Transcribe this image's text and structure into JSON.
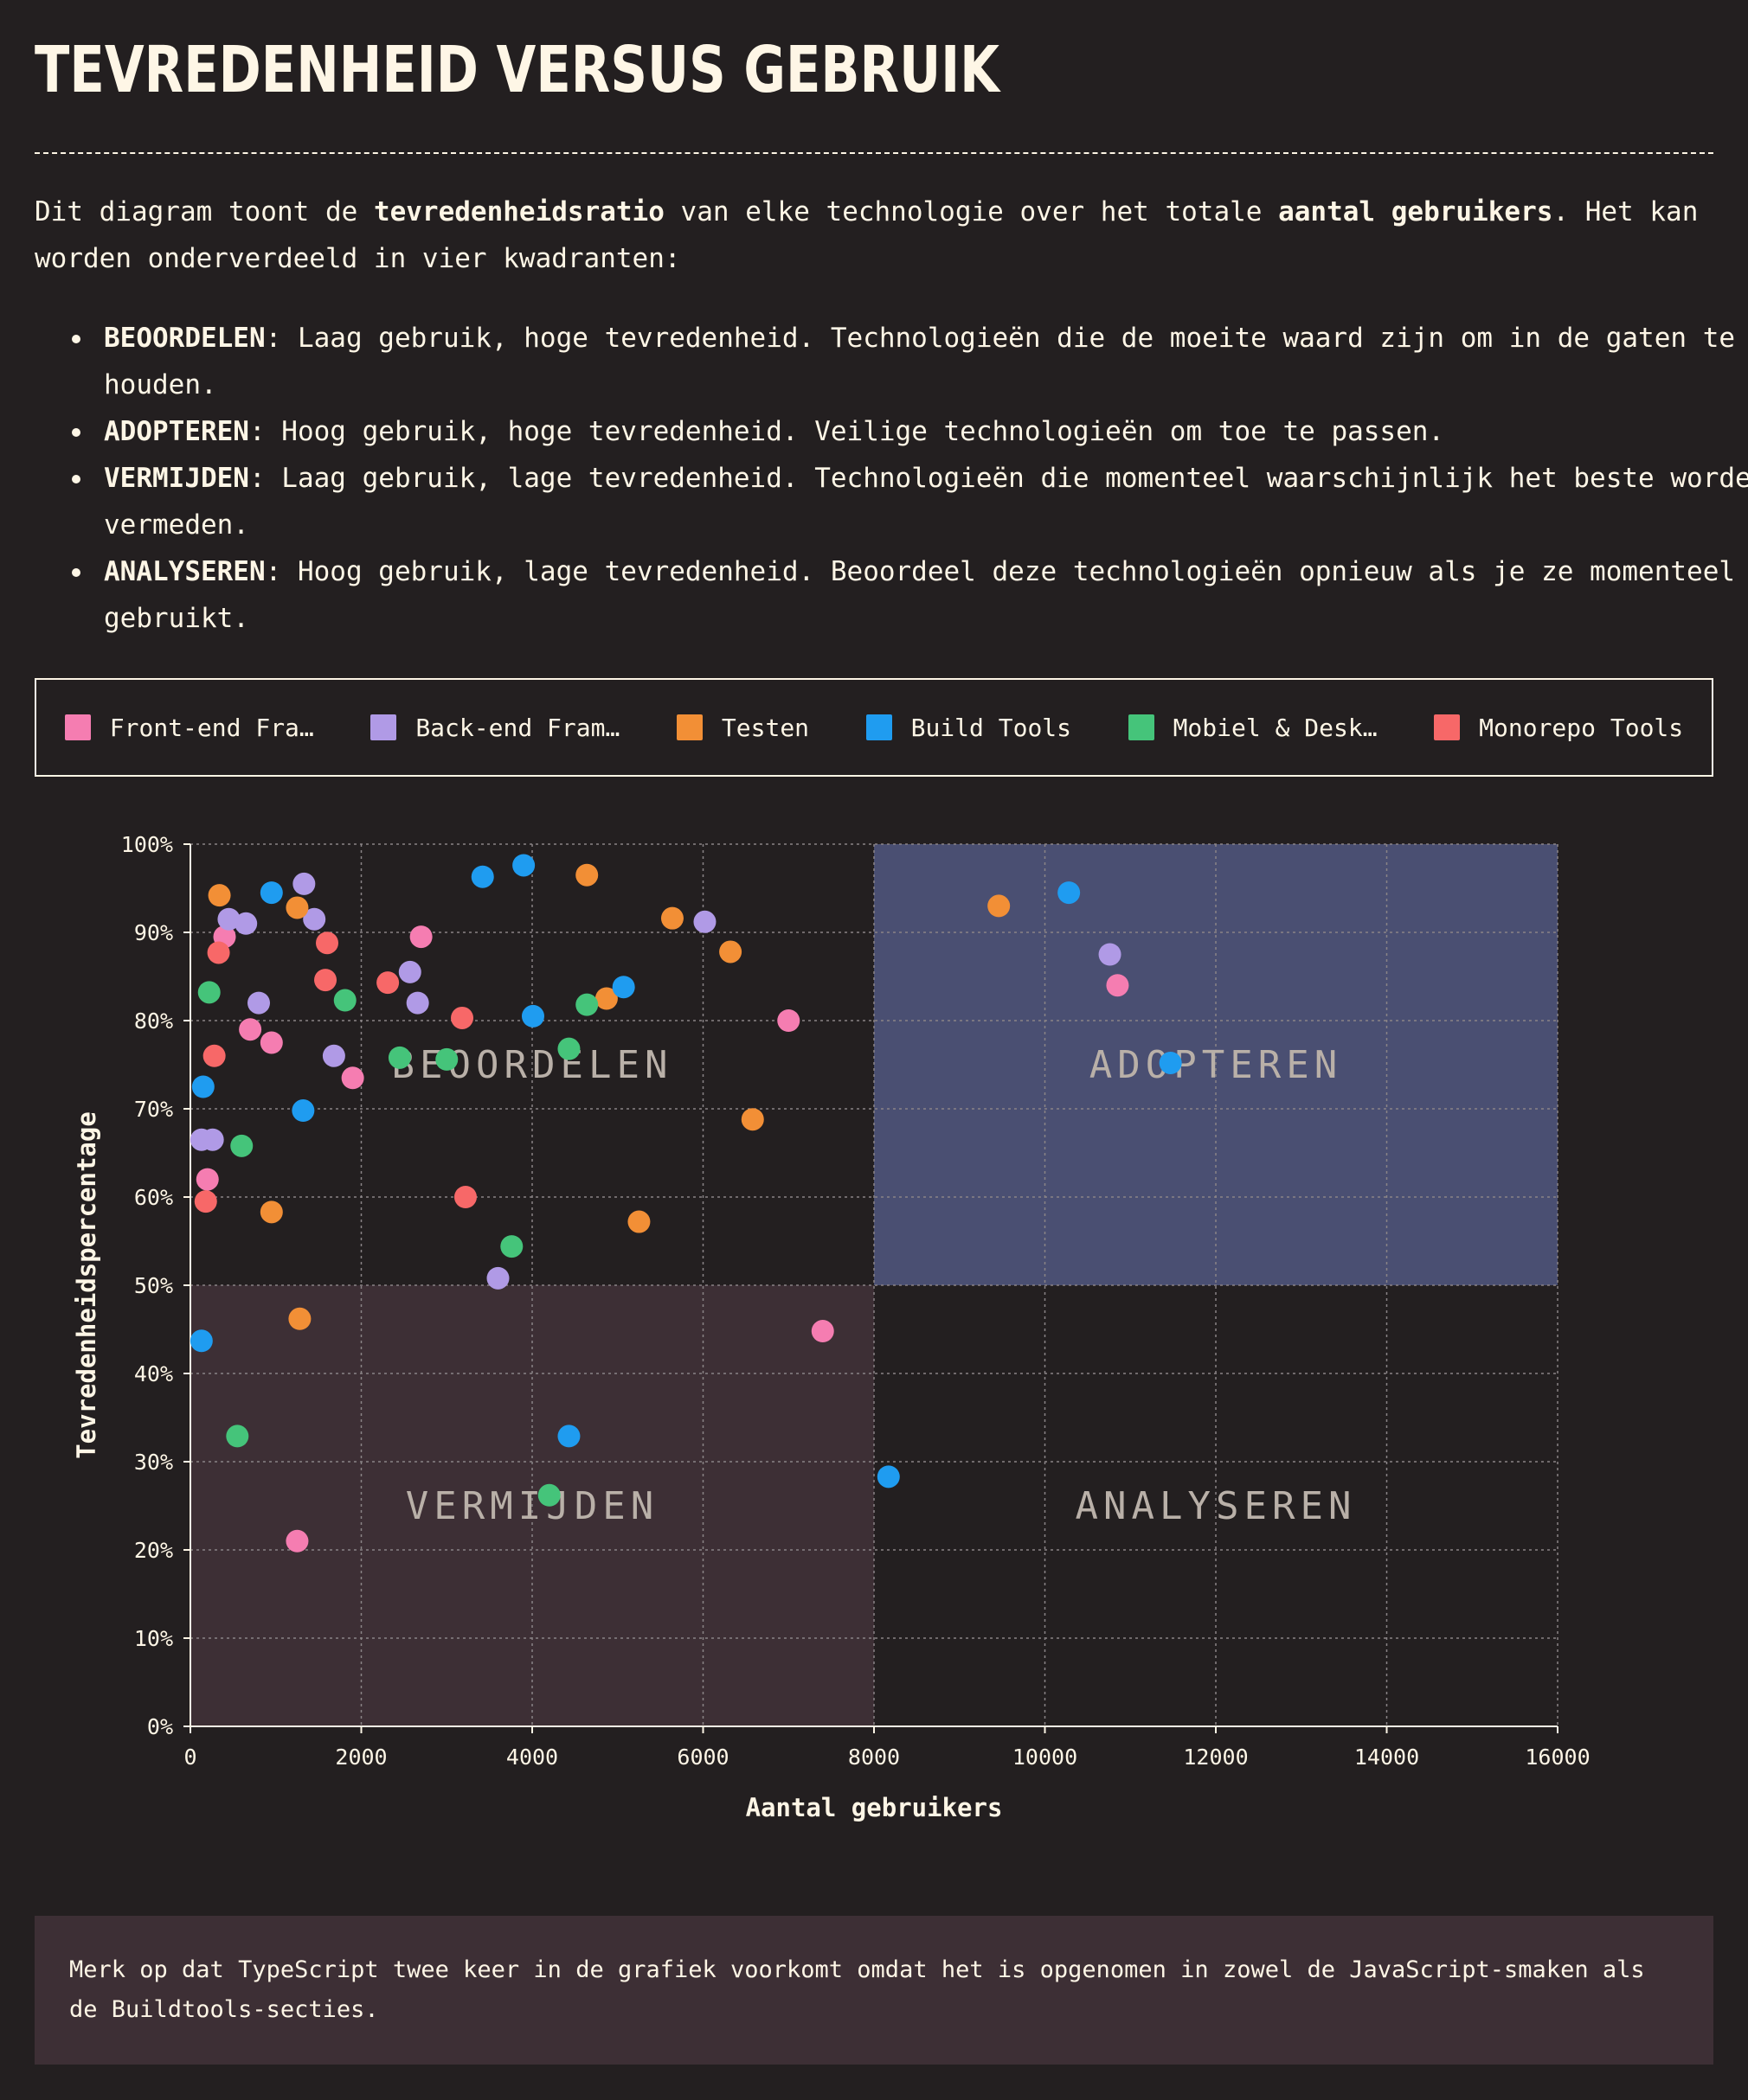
{
  "page": {
    "title": "Tevredenheid versus gebruik",
    "intro": {
      "part1": "Dit diagram toont de ",
      "bold1": "tevredenheidsratio",
      "part2": " van elke technologie over het totale ",
      "bold2": "aantal gebruikers",
      "part3": ". Het kan worden onderverdeeld in vier kwadranten:"
    },
    "quadrants": [
      {
        "name": "BEOORDELEN",
        "text": ": Laag gebruik, hoge tevredenheid. Technologieën die de moeite waard zijn om in de gaten te houden."
      },
      {
        "name": "ADOPTEREN",
        "text": ": Hoog gebruik, hoge tevredenheid. Veilige technologieën om toe te passen."
      },
      {
        "name": "VERMIJDEN",
        "text": ": Laag gebruik, lage tevredenheid. Technologieën die momenteel waarschijnlijk het beste worden vermeden."
      },
      {
        "name": "ANALYSEREN",
        "text": ": Hoog gebruik, lage tevredenheid. Beoordeel deze technologieën opnieuw als je ze momenteel gebruikt."
      }
    ],
    "legend": [
      {
        "label": "Front-end Fra…",
        "color": "#f57db1"
      },
      {
        "label": "Back-end Fram…",
        "color": "#b09ae6"
      },
      {
        "label": "Testen",
        "color": "#f28f36"
      },
      {
        "label": "Build Tools",
        "color": "#1f9cf0"
      },
      {
        "label": "Mobiel & Desk…",
        "color": "#45c47a"
      },
      {
        "label": "Monorepo Tools",
        "color": "#f76868"
      }
    ],
    "note": "Merk op dat TypeScript twee keer in de grafiek voorkomt omdat het is opgenomen in zowel de JavaScript-smaken als de Buildtools-secties."
  },
  "chart_data": {
    "type": "scatter",
    "xlabel": "Aantal gebruikers",
    "ylabel": "Tevredenheidspercentage",
    "xlim": [
      0,
      16000
    ],
    "ylim": [
      0,
      100
    ],
    "x_ticks": [
      "0",
      "2000",
      "4000",
      "6000",
      "8000",
      "10000",
      "12000",
      "14000",
      "16000"
    ],
    "y_ticks": [
      "0%",
      "10%",
      "20%",
      "30%",
      "40%",
      "50%",
      "60%",
      "70%",
      "80%",
      "90%",
      "100%"
    ],
    "grid": true,
    "quadrant_labels": [
      {
        "label": "BEOORDELEN",
        "x": 4000,
        "y": 75
      },
      {
        "label": "ADOPTEREN",
        "x": 12000,
        "y": 75
      },
      {
        "label": "VERMIJDEN",
        "x": 4000,
        "y": 25
      },
      {
        "label": "ANALYSEREN",
        "x": 12000,
        "y": 25
      }
    ],
    "quadrant_fills": {
      "beoordelen": "#231f20",
      "adopteren": "#4a4f72",
      "vermijden": "#3d2f35",
      "analyseren": "#231f20"
    },
    "series": [
      {
        "color": "#f57db1",
        "points": [
          [
            400,
            89.5
          ],
          [
            700,
            79
          ],
          [
            950,
            77.5
          ],
          [
            1900,
            73.5
          ],
          [
            2700,
            89.5
          ],
          [
            7000,
            80
          ],
          [
            10850,
            84
          ],
          [
            200,
            62
          ],
          [
            1250,
            21
          ],
          [
            7400,
            44.8
          ]
        ]
      },
      {
        "color": "#b09ae6",
        "points": [
          [
            450,
            91.5
          ],
          [
            650,
            91
          ],
          [
            800,
            82
          ],
          [
            1330,
            95.5
          ],
          [
            1450,
            91.5
          ],
          [
            1680,
            76
          ],
          [
            2570,
            85.5
          ],
          [
            2660,
            82
          ],
          [
            6020,
            91.2
          ],
          [
            10760,
            87.5
          ],
          [
            130,
            66.5
          ],
          [
            260,
            66.5
          ],
          [
            3600,
            50.8
          ]
        ]
      },
      {
        "color": "#f28f36",
        "points": [
          [
            340,
            94.2
          ],
          [
            1250,
            92.8
          ],
          [
            4640,
            96.5
          ],
          [
            5640,
            91.6
          ],
          [
            6320,
            87.8
          ],
          [
            4870,
            82.5
          ],
          [
            6580,
            68.8
          ],
          [
            950,
            58.3
          ],
          [
            5250,
            57.2
          ],
          [
            9460,
            93
          ],
          [
            1280,
            46.2
          ]
        ]
      },
      {
        "color": "#1f9cf0",
        "points": [
          [
            950,
            94.5
          ],
          [
            3420,
            96.3
          ],
          [
            3900,
            97.6
          ],
          [
            4010,
            80.5
          ],
          [
            5070,
            83.8
          ],
          [
            150,
            72.5
          ],
          [
            1320,
            69.8
          ],
          [
            10280,
            94.5
          ],
          [
            11470,
            75.2
          ],
          [
            130,
            43.7
          ],
          [
            4430,
            32.9
          ],
          [
            8170,
            28.3
          ]
        ]
      },
      {
        "color": "#45c47a",
        "points": [
          [
            220,
            83.2
          ],
          [
            1810,
            82.3
          ],
          [
            4640,
            81.8
          ],
          [
            2450,
            75.8
          ],
          [
            3000,
            75.6
          ],
          [
            4430,
            76.8
          ],
          [
            600,
            65.8
          ],
          [
            3760,
            54.4
          ],
          [
            550,
            32.9
          ],
          [
            4200,
            26.2
          ]
        ]
      },
      {
        "color": "#f76868",
        "points": [
          [
            330,
            87.7
          ],
          [
            1600,
            88.8
          ],
          [
            1580,
            84.6
          ],
          [
            2310,
            84.3
          ],
          [
            3180,
            80.3
          ],
          [
            280,
            76
          ],
          [
            180,
            59.5
          ],
          [
            3220,
            60
          ]
        ]
      }
    ]
  }
}
